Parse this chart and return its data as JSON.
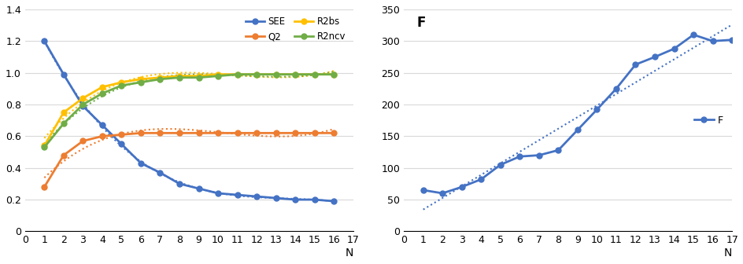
{
  "left": {
    "SEE": [
      1.2,
      0.99,
      0.79,
      0.67,
      0.55,
      0.43,
      0.37,
      0.3,
      0.27,
      0.24,
      0.23,
      0.22,
      0.21,
      0.2,
      0.2,
      0.19
    ],
    "Q2": [
      0.28,
      0.48,
      0.57,
      0.6,
      0.61,
      0.62,
      0.62,
      0.62,
      0.62,
      0.62,
      0.62,
      0.62,
      0.62,
      0.62,
      0.62,
      0.62
    ],
    "R2bs": [
      0.54,
      0.75,
      0.84,
      0.91,
      0.94,
      0.96,
      0.97,
      0.98,
      0.98,
      0.99,
      0.99,
      0.99,
      0.99,
      0.99,
      0.99,
      0.99
    ],
    "R2ncv": [
      0.53,
      0.68,
      0.8,
      0.87,
      0.92,
      0.94,
      0.96,
      0.97,
      0.97,
      0.98,
      0.99,
      0.99,
      0.99,
      0.99,
      0.99,
      0.99
    ],
    "x": [
      1,
      2,
      3,
      4,
      5,
      6,
      7,
      8,
      9,
      10,
      11,
      12,
      13,
      14,
      15,
      16
    ],
    "ylim": [
      0,
      1.4
    ],
    "yticks": [
      0,
      0.2,
      0.4,
      0.6,
      0.8,
      1.0,
      1.2,
      1.4
    ],
    "xlim": [
      0,
      17
    ],
    "xticks": [
      0,
      1,
      2,
      3,
      4,
      5,
      6,
      7,
      8,
      9,
      10,
      11,
      12,
      13,
      14,
      15,
      16,
      17
    ],
    "xlabel": "N",
    "colors": {
      "SEE": "#4472C4",
      "Q2": "#ED7D31",
      "R2bs": "#FFC000",
      "R2ncv": "#70AD47"
    }
  },
  "right": {
    "F": [
      65,
      60,
      70,
      82,
      105,
      118,
      120,
      128,
      160,
      192,
      225,
      263,
      275,
      288,
      310,
      300,
      302
    ],
    "x": [
      1,
      2,
      3,
      4,
      5,
      6,
      7,
      8,
      9,
      10,
      11,
      12,
      13,
      14,
      15,
      16,
      17
    ],
    "ylim": [
      0,
      350
    ],
    "yticks": [
      0,
      50,
      100,
      150,
      200,
      250,
      300,
      350
    ],
    "xlim": [
      0,
      17
    ],
    "xticks": [
      0,
      1,
      2,
      3,
      4,
      5,
      6,
      7,
      8,
      9,
      10,
      11,
      12,
      13,
      14,
      15,
      16,
      17
    ],
    "xlabel": "N",
    "ylabel": "F",
    "color": "#4472C4"
  },
  "bg_color": "#FFFFFF",
  "grid_color": "#D9D9D9",
  "legend_left": [
    "SEE",
    "Q2",
    "R2bs",
    "R2ncv"
  ]
}
